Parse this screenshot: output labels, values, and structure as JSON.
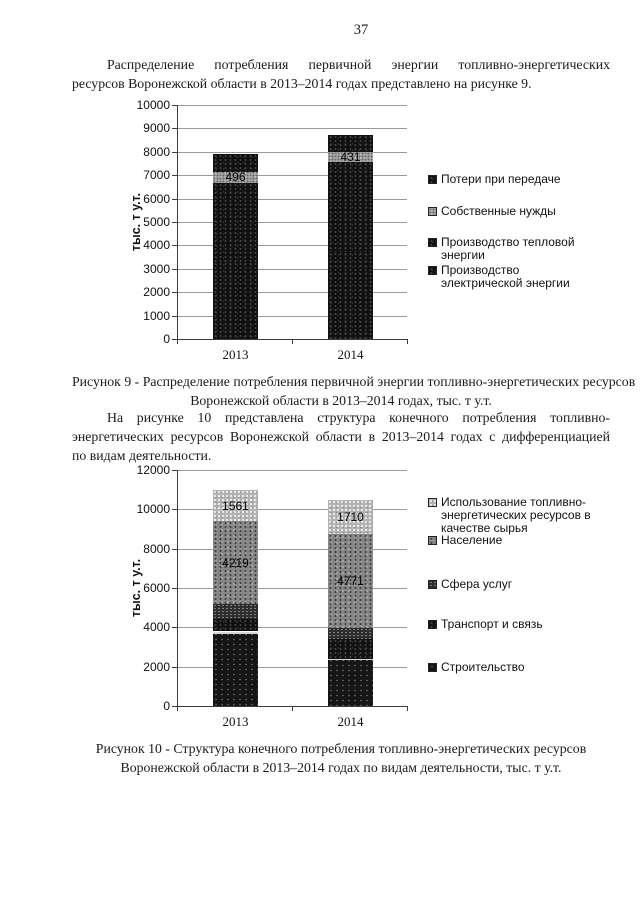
{
  "page": {
    "number": "37"
  },
  "paragraphs": {
    "p1_lines": [
      "Распределение    потребления    первичной    энергии    топливно-энергетических",
      "ресурсов Воронежской области в 2013–2014 годах представлено на рисунке 9."
    ],
    "p2_lines": [
      "На   рисунке   10   представлена   структура   конечного   потребления   топливно-",
      "энергетических ресурсов Воронежской области в 2013–2014 годах с дифференциацией",
      "по видам деятельности."
    ]
  },
  "figures": [
    {
      "caption_lines": [
        "Рисунок 9 - Распределение потребления первичной энергии топливно-энергетических ресурсов",
        "Воронежской области в 2013–2014 годах, тыс. т у.т."
      ]
    },
    {
      "caption_lines": [
        "Рисунок 10 - Структура конечного потребления топливно-энергетических ресурсов",
        "Воронежской области в 2013–2014 годах по видам деятельности, тыс. т у.т."
      ]
    }
  ],
  "chart_data": [
    {
      "type": "bar",
      "stacked": true,
      "ylabel": "тыс. т у.т.",
      "ylim": [
        0,
        10000
      ],
      "ymax": 10000,
      "ytick_step": 1000,
      "grid": true,
      "legend_position": "right",
      "categories": [
        "2013",
        "2014"
      ],
      "series": [
        {
          "name": "Производство электрической энергии",
          "pattern": "kblack",
          "values": [
            3300,
            3700
          ]
        },
        {
          "name": "Производство тепловой энергии",
          "pattern": "kblack",
          "values": [
            3370,
            3850
          ]
        },
        {
          "name": "Собственные нужды",
          "pattern": "gray",
          "values": [
            496,
            431
          ],
          "data_labels": [
            "496",
            "431"
          ]
        },
        {
          "name": "Потери при передаче",
          "pattern": "kblack",
          "values": [
            760,
            740
          ]
        }
      ]
    },
    {
      "type": "bar",
      "stacked": true,
      "ylabel": "тыс. т у.т.",
      "ylim": [
        0,
        12000
      ],
      "ymax": 12000,
      "ytick_step": 2000,
      "grid": true,
      "legend_position": "right",
      "categories": [
        "2013",
        "2014"
      ],
      "series": [
        {
          "name": "Строительство",
          "pattern": "construct",
          "values": [
            3780,
            2430
          ]
        },
        {
          "name": "Транспорт и связь",
          "pattern": "kblack",
          "values": [
            620,
            1000
          ]
        },
        {
          "name": "Сфера услуг",
          "pattern": "darkdot",
          "values": [
            780,
            540
          ]
        },
        {
          "name": "Население",
          "pattern": "mgray",
          "values": [
            4219,
            4771
          ],
          "data_labels": [
            "4219",
            "4771"
          ]
        },
        {
          "name": "Использование топливно-энергетических ресурсов в качестве сырья",
          "pattern": "light",
          "values": [
            1561,
            1710
          ],
          "data_labels": [
            "1561",
            "1710"
          ]
        }
      ]
    }
  ]
}
